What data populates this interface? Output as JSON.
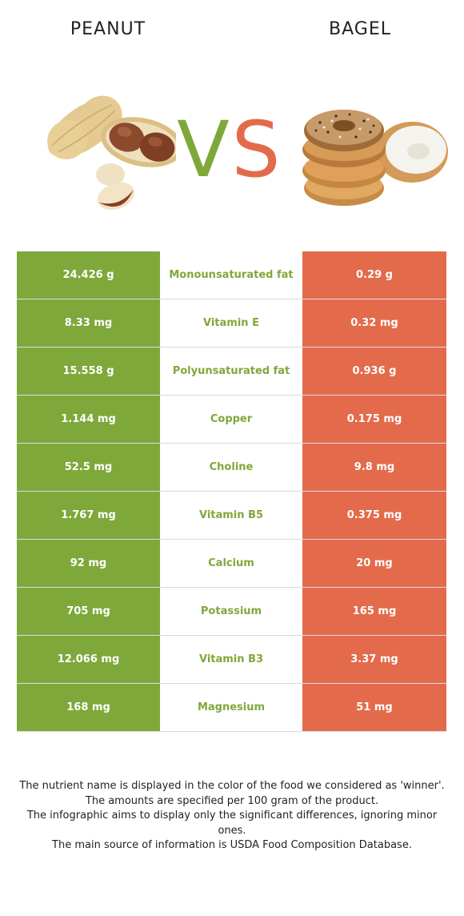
{
  "header": {
    "left_food": "PEANUT",
    "right_food": "BAGEL",
    "vs_text": {
      "v": "V",
      "s": "S"
    }
  },
  "colors": {
    "winner_left": "#7fa83a",
    "winner_right": "#e36b4c"
  },
  "rows": [
    {
      "left": "24.426 g",
      "nutrient": "Monounsaturated fat",
      "right": "0.29 g"
    },
    {
      "left": "8.33 mg",
      "nutrient": "Vitamin E",
      "right": "0.32 mg"
    },
    {
      "left": "15.558 g",
      "nutrient": "Polyunsaturated fat",
      "right": "0.936 g"
    },
    {
      "left": "1.144 mg",
      "nutrient": "Copper",
      "right": "0.175 mg"
    },
    {
      "left": "52.5 mg",
      "nutrient": "Choline",
      "right": "9.8 mg"
    },
    {
      "left": "1.767 mg",
      "nutrient": "Vitamin B5",
      "right": "0.375 mg"
    },
    {
      "left": "92 mg",
      "nutrient": "Calcium",
      "right": "20 mg"
    },
    {
      "left": "705 mg",
      "nutrient": "Potassium",
      "right": "165 mg"
    },
    {
      "left": "12.066 mg",
      "nutrient": "Vitamin B3",
      "right": "3.37 mg"
    },
    {
      "left": "168 mg",
      "nutrient": "Magnesium",
      "right": "51 mg"
    }
  ],
  "footnote": [
    "The nutrient name is displayed in the color of the food we considered as 'winner'.",
    "The amounts are specified per 100 gram of the product.",
    "The infographic aims to display only the significant differences, ignoring minor ones.",
    "The main source of information is USDA Food Composition Database."
  ]
}
